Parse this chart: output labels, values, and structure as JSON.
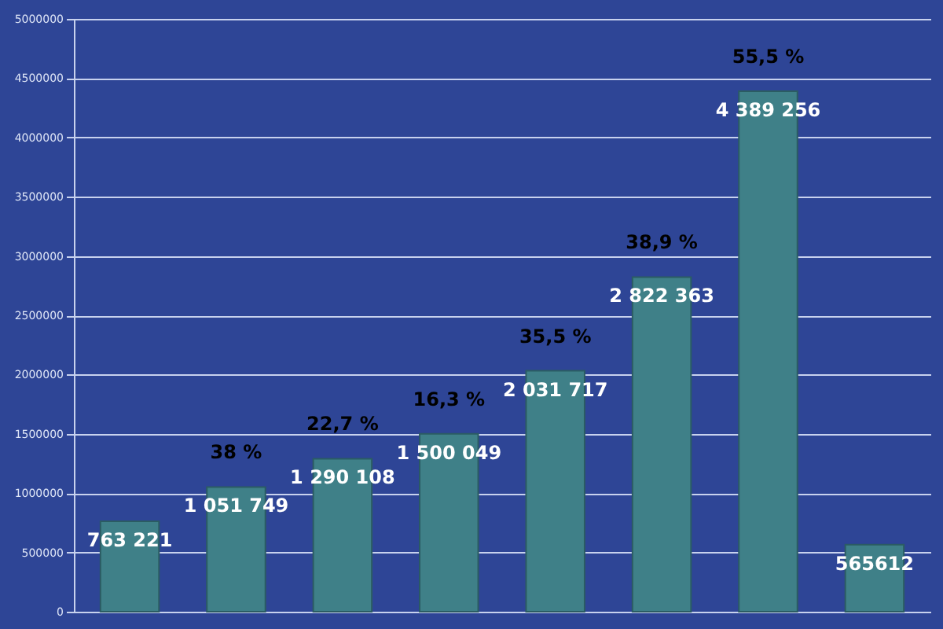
{
  "chart_data": {
    "type": "bar",
    "categories": [
      null,
      null,
      null,
      null,
      null,
      null,
      null,
      null
    ],
    "values": [
      763221,
      1051749,
      1290108,
      1500049,
      2031717,
      2822363,
      4389256,
      565612
    ],
    "value_labels": [
      "763 221",
      "1 051 749",
      "1 290 108",
      "1 500 049",
      "2 031 717",
      "2 822 363",
      "4 389 256",
      "565612"
    ],
    "color": "#3f8088",
    "ylim": [
      0,
      5000000
    ],
    "yticks": [
      0,
      500000,
      1000000,
      1500000,
      2000000,
      2500000,
      3000000,
      3500000,
      4000000,
      4500000,
      5000000
    ],
    "grid": "y",
    "annotations": [
      {
        "text": "38 %",
        "y": 1051749
      },
      {
        "text": "22,7 %",
        "y": 1290108
      },
      {
        "text": "16,3 %",
        "y": 1500049
      },
      {
        "text": "35,5 %",
        "y": 2031717
      },
      {
        "text": "38,9 %",
        "y": 2822363
      },
      {
        "text": "55,5 %",
        "y": 4389256
      }
    ]
  }
}
